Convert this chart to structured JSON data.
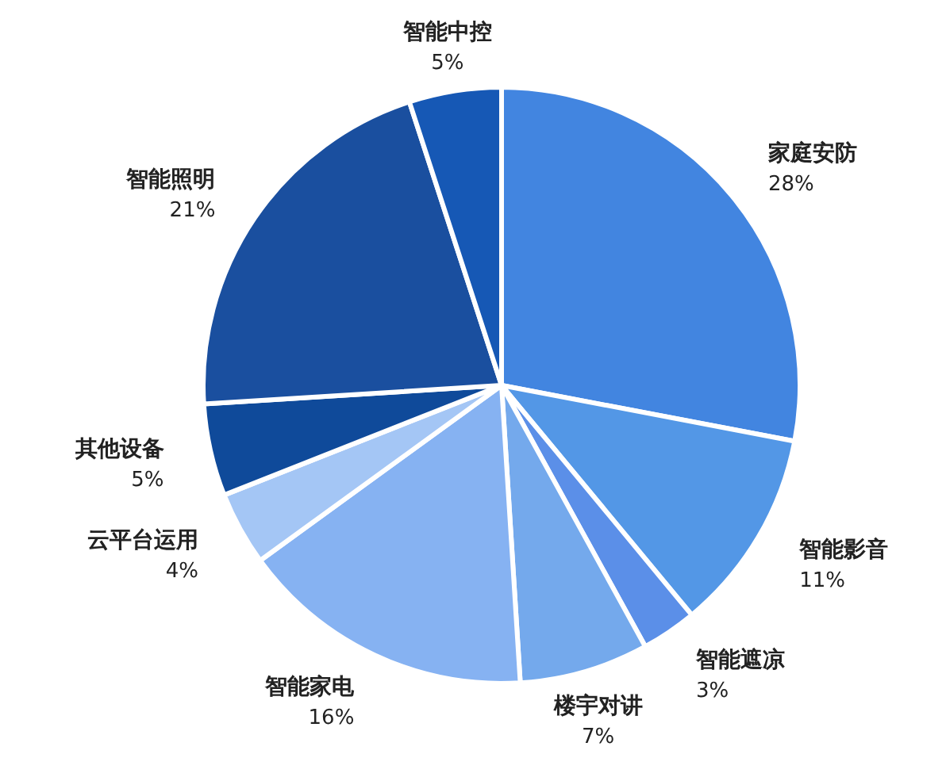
{
  "chart_data": {
    "type": "pie",
    "categories": [
      "家庭安防",
      "智能影音",
      "智能遮凉",
      "楼宇对讲",
      "智能家电",
      "云平台运用",
      "其他设备",
      "智能照明",
      "智能中控"
    ],
    "values": [
      28,
      11,
      3,
      7,
      16,
      4,
      5,
      21,
      5
    ],
    "value_labels": [
      "28%",
      "11%",
      "3%",
      "7%",
      "16%",
      "4%",
      "5%",
      "21%",
      "5%"
    ],
    "colors": [
      "#4285e0",
      "#5397e6",
      "#5b8fe8",
      "#74a9ec",
      "#86b2f2",
      "#a4c6f5",
      "#0f4a9a",
      "#1a4f9f",
      "#1658b5"
    ]
  }
}
